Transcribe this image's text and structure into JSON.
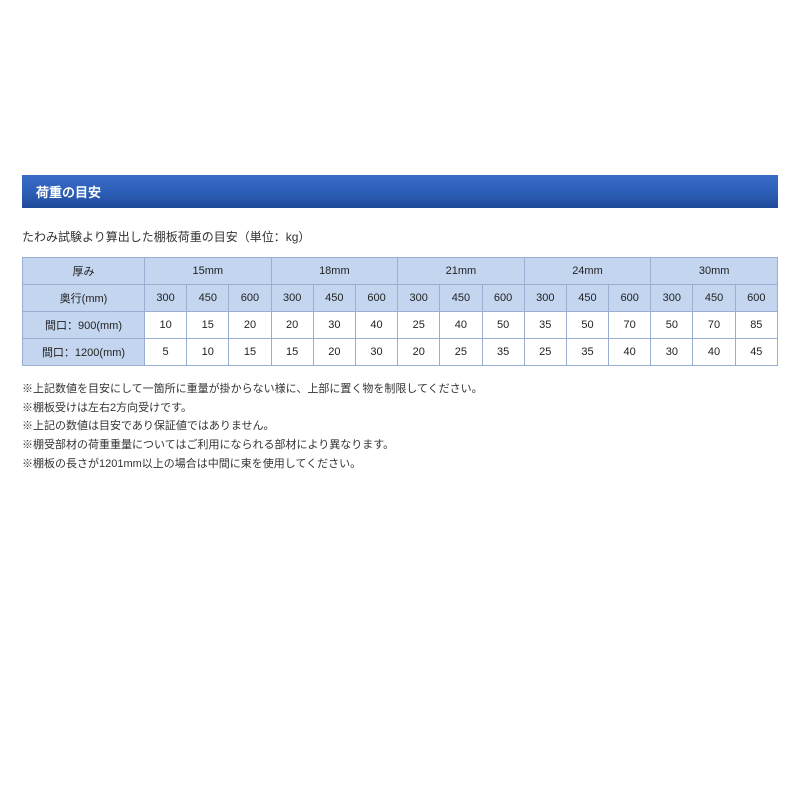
{
  "section": {
    "title": "荷重の目安",
    "intro": "たわみ試験より算出した棚板荷重の目安（単位：kg）"
  },
  "table": {
    "header_thickness_label": "厚み",
    "header_depth_label": "奥行(mm)",
    "thickness_cols": [
      "15mm",
      "18mm",
      "21mm",
      "24mm",
      "30mm"
    ],
    "depth_cols": [
      "300",
      "450",
      "600"
    ],
    "rows": [
      {
        "label": "間口：900(mm)",
        "values": [
          "10",
          "15",
          "20",
          "20",
          "30",
          "40",
          "25",
          "40",
          "50",
          "35",
          "50",
          "70",
          "50",
          "70",
          "85"
        ]
      },
      {
        "label": "間口：1200(mm)",
        "values": [
          "5",
          "10",
          "15",
          "15",
          "20",
          "30",
          "20",
          "25",
          "35",
          "25",
          "35",
          "40",
          "30",
          "40",
          "45"
        ]
      }
    ]
  },
  "notes": [
    "※上記数値を目安にして一箇所に重量が掛からない様に、上部に置く物を制限してください。",
    "※棚板受けは左右2方向受けです。",
    "※上記の数値は目安であり保証値ではありません。",
    "※棚受部材の荷重重量についてはご利用になられる部材により異なります。",
    "※棚板の長さが1201mm以上の場合は中間に束を使用してください。"
  ],
  "colors": {
    "header_bg_start": "#3a6cc7",
    "header_bg_end": "#1f4a9a",
    "table_header_bg": "#c3d5ef",
    "border": "#9aaed1",
    "text": "#333333"
  }
}
